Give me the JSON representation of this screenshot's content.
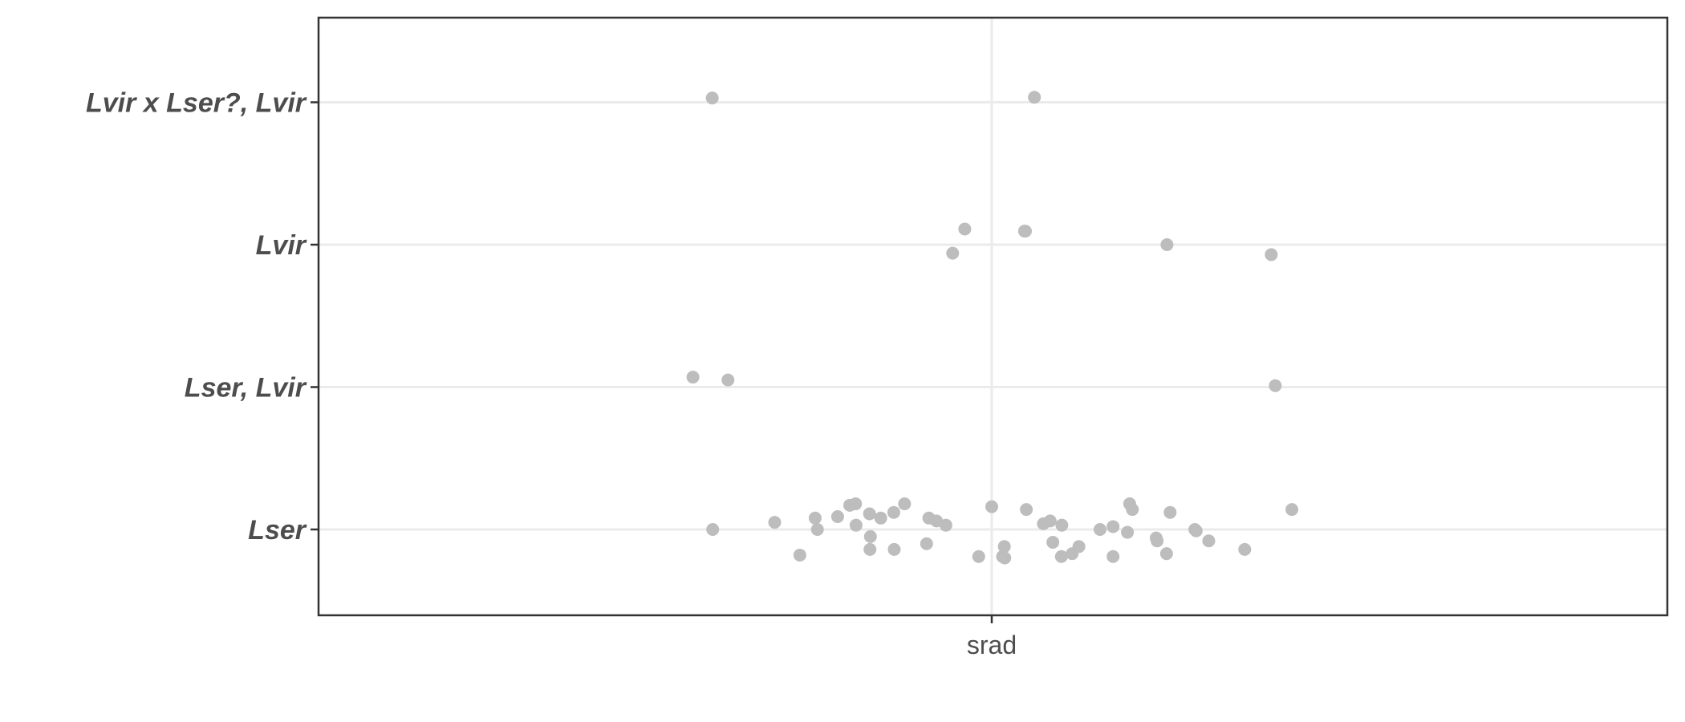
{
  "chart_data": {
    "type": "scatter",
    "title": "",
    "xlabel": "",
    "ylabel": "",
    "x_categories": [
      "srad"
    ],
    "y_categories": [
      "Lser",
      "Lser, Lvir",
      "Lvir",
      "Lvir x Lser?, Lvir"
    ],
    "grid": true,
    "legend": "none",
    "colors": {
      "point": "#bdbdbd",
      "grid": "#ebebeb",
      "axis": "#333333",
      "tick_label": "#4d4d4d",
      "background": "#ffffff"
    },
    "series": [
      {
        "points": [
          {
            "x": "srad",
            "jitter": -0.622,
            "y": "Lvir x Lser?, Lvir",
            "y_jitter": 0.03
          },
          {
            "x": "srad",
            "jitter": 0.095,
            "y": "Lvir x Lser?, Lvir",
            "y_jitter": 0.035
          },
          {
            "x": "srad",
            "jitter": -0.087,
            "y": "Lvir",
            "y_jitter": -0.06
          },
          {
            "x": "srad",
            "jitter": -0.06,
            "y": "Lvir",
            "y_jitter": 0.11
          },
          {
            "x": "srad",
            "jitter": 0.073,
            "y": "Lvir",
            "y_jitter": 0.095
          },
          {
            "x": "srad",
            "jitter": 0.075,
            "y": "Lvir",
            "y_jitter": 0.095
          },
          {
            "x": "srad",
            "jitter": 0.39,
            "y": "Lvir",
            "y_jitter": 0.0
          },
          {
            "x": "srad",
            "jitter": 0.622,
            "y": "Lvir",
            "y_jitter": -0.07
          },
          {
            "x": "srad",
            "jitter": -0.665,
            "y": "Lser, Lvir",
            "y_jitter": 0.07
          },
          {
            "x": "srad",
            "jitter": -0.587,
            "y": "Lser, Lvir",
            "y_jitter": 0.05
          },
          {
            "x": "srad",
            "jitter": 0.631,
            "y": "Lser, Lvir",
            "y_jitter": 0.01
          },
          {
            "x": "srad",
            "jitter": -0.621,
            "y": "Lser",
            "y_jitter": 0.0
          },
          {
            "x": "srad",
            "jitter": -0.483,
            "y": "Lser",
            "y_jitter": 0.05
          },
          {
            "x": "srad",
            "jitter": -0.427,
            "y": "Lser",
            "y_jitter": -0.18
          },
          {
            "x": "srad",
            "jitter": -0.393,
            "y": "Lser",
            "y_jitter": 0.08
          },
          {
            "x": "srad",
            "jitter": -0.388,
            "y": "Lser",
            "y_jitter": 0.0
          },
          {
            "x": "srad",
            "jitter": -0.343,
            "y": "Lser",
            "y_jitter": 0.09
          },
          {
            "x": "srad",
            "jitter": -0.316,
            "y": "Lser",
            "y_jitter": 0.17
          },
          {
            "x": "srad",
            "jitter": -0.303,
            "y": "Lser",
            "y_jitter": 0.18
          },
          {
            "x": "srad",
            "jitter": -0.302,
            "y": "Lser",
            "y_jitter": 0.03
          },
          {
            "x": "srad",
            "jitter": -0.272,
            "y": "Lser",
            "y_jitter": 0.11
          },
          {
            "x": "srad",
            "jitter": -0.27,
            "y": "Lser",
            "y_jitter": -0.05
          },
          {
            "x": "srad",
            "jitter": -0.271,
            "y": "Lser",
            "y_jitter": -0.14
          },
          {
            "x": "srad",
            "jitter": -0.247,
            "y": "Lser",
            "y_jitter": 0.08
          },
          {
            "x": "srad",
            "jitter": -0.218,
            "y": "Lser",
            "y_jitter": 0.12
          },
          {
            "x": "srad",
            "jitter": -0.217,
            "y": "Lser",
            "y_jitter": -0.14
          },
          {
            "x": "srad",
            "jitter": -0.194,
            "y": "Lser",
            "y_jitter": 0.18
          },
          {
            "x": "srad",
            "jitter": -0.145,
            "y": "Lser",
            "y_jitter": -0.1
          },
          {
            "x": "srad",
            "jitter": -0.14,
            "y": "Lser",
            "y_jitter": 0.08
          },
          {
            "x": "srad",
            "jitter": -0.123,
            "y": "Lser",
            "y_jitter": 0.06
          },
          {
            "x": "srad",
            "jitter": -0.102,
            "y": "Lser",
            "y_jitter": 0.03
          },
          {
            "x": "srad",
            "jitter": -0.029,
            "y": "Lser",
            "y_jitter": -0.19
          },
          {
            "x": "srad",
            "jitter": 0.0,
            "y": "Lser",
            "y_jitter": 0.16
          },
          {
            "x": "srad",
            "jitter": 0.024,
            "y": "Lser",
            "y_jitter": -0.19
          },
          {
            "x": "srad",
            "jitter": 0.029,
            "y": "Lser",
            "y_jitter": -0.2
          },
          {
            "x": "srad",
            "jitter": 0.028,
            "y": "Lser",
            "y_jitter": -0.12
          },
          {
            "x": "srad",
            "jitter": 0.077,
            "y": "Lser",
            "y_jitter": 0.14
          },
          {
            "x": "srad",
            "jitter": 0.115,
            "y": "Lser",
            "y_jitter": 0.04
          },
          {
            "x": "srad",
            "jitter": 0.13,
            "y": "Lser",
            "y_jitter": 0.06
          },
          {
            "x": "srad",
            "jitter": 0.136,
            "y": "Lser",
            "y_jitter": -0.09
          },
          {
            "x": "srad",
            "jitter": 0.155,
            "y": "Lser",
            "y_jitter": -0.19
          },
          {
            "x": "srad",
            "jitter": 0.156,
            "y": "Lser",
            "y_jitter": 0.03
          },
          {
            "x": "srad",
            "jitter": 0.179,
            "y": "Lser",
            "y_jitter": -0.17
          },
          {
            "x": "srad",
            "jitter": 0.194,
            "y": "Lser",
            "y_jitter": -0.12
          },
          {
            "x": "srad",
            "jitter": 0.241,
            "y": "Lser",
            "y_jitter": 0.0
          },
          {
            "x": "srad",
            "jitter": 0.27,
            "y": "Lser",
            "y_jitter": 0.02
          },
          {
            "x": "srad",
            "jitter": 0.27,
            "y": "Lser",
            "y_jitter": -0.19
          },
          {
            "x": "srad",
            "jitter": 0.302,
            "y": "Lser",
            "y_jitter": -0.02
          },
          {
            "x": "srad",
            "jitter": 0.307,
            "y": "Lser",
            "y_jitter": 0.18
          },
          {
            "x": "srad",
            "jitter": 0.313,
            "y": "Lser",
            "y_jitter": 0.14
          },
          {
            "x": "srad",
            "jitter": 0.366,
            "y": "Lser",
            "y_jitter": -0.06
          },
          {
            "x": "srad",
            "jitter": 0.368,
            "y": "Lser",
            "y_jitter": -0.08
          },
          {
            "x": "srad",
            "jitter": 0.389,
            "y": "Lser",
            "y_jitter": -0.17
          },
          {
            "x": "srad",
            "jitter": 0.397,
            "y": "Lser",
            "y_jitter": 0.12
          },
          {
            "x": "srad",
            "jitter": 0.452,
            "y": "Lser",
            "y_jitter": 0.0
          },
          {
            "x": "srad",
            "jitter": 0.455,
            "y": "Lser",
            "y_jitter": -0.01
          },
          {
            "x": "srad",
            "jitter": 0.483,
            "y": "Lser",
            "y_jitter": -0.08
          },
          {
            "x": "srad",
            "jitter": 0.563,
            "y": "Lser",
            "y_jitter": -0.14
          },
          {
            "x": "srad",
            "jitter": 0.668,
            "y": "Lser",
            "y_jitter": 0.14
          }
        ]
      }
    ]
  }
}
